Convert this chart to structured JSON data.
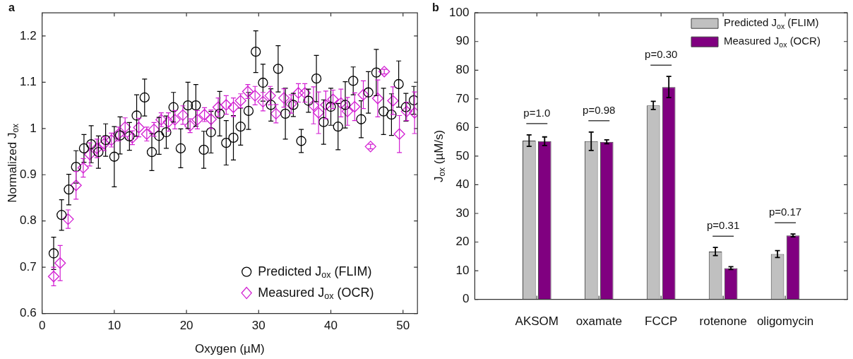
{
  "chart_data": [
    {
      "type": "scatter",
      "title": "a",
      "xlabel": "Oxygen (µM)",
      "ylabel": "Normalized J$_{ox}$",
      "xlim": [
        0,
        52
      ],
      "xticks": [
        0,
        10,
        20,
        30,
        40,
        50
      ],
      "ylim": [
        0.6,
        1.25
      ],
      "yticks": [
        0.6,
        0.7,
        0.8,
        0.9,
        1,
        1.1,
        1.2
      ],
      "legend": "bottom right",
      "series": [
        {
          "name": "Predicted J$_{ox}$ (FLIM)",
          "color": "#000000",
          "marker": "circle",
          "x": [
            1.6,
            2.7,
            3.7,
            4.7,
            5.8,
            6.8,
            7.8,
            8.8,
            10.0,
            10.8,
            12.1,
            13.1,
            14.2,
            15.2,
            16.2,
            17.2,
            18.2,
            19.2,
            20.2,
            21.3,
            22.4,
            23.4,
            24.6,
            25.5,
            26.5,
            27.5,
            28.6,
            29.6,
            30.6,
            31.7,
            32.7,
            33.7,
            34.8,
            35.9,
            36.9,
            38.0,
            39.0,
            40.0,
            41.0,
            42.0,
            43.1,
            44.2,
            45.2,
            46.3,
            47.3,
            48.4,
            49.4,
            50.4,
            51.5
          ],
          "values": [
            0.73,
            0.813,
            0.868,
            0.917,
            0.957,
            0.966,
            0.949,
            0.975,
            0.939,
            0.985,
            0.983,
            1.028,
            1.067,
            0.949,
            0.984,
            0.992,
            1.046,
            0.957,
            1.05,
            1.05,
            0.954,
            0.992,
            1.032,
            0.969,
            0.98,
            1.004,
            1.038,
            1.166,
            1.099,
            1.051,
            1.129,
            1.032,
            1.051,
            0.973,
            1.06,
            1.108,
            1.014,
            1.047,
            1.004,
            1.051,
            1.103,
            1.02,
            1.078,
            1.121,
            1.037,
            1.03,
            1.096,
            1.046,
            1.061
          ],
          "errors": [
            0.035,
            0.033,
            0.033,
            0.035,
            0.03,
            0.04,
            0.035,
            0.035,
            0.065,
            0.04,
            0.03,
            0.045,
            0.04,
            0.04,
            0.04,
            0.035,
            0.032,
            0.042,
            0.05,
            0.045,
            0.04,
            0.045,
            0.048,
            0.048,
            0.048,
            0.04,
            0.04,
            0.045,
            0.04,
            0.035,
            0.05,
            0.055,
            0.025,
            0.025,
            0.025,
            0.05,
            0.048,
            0.04,
            0.05,
            0.05,
            0.03,
            0.04,
            0.045,
            0.05,
            0.05,
            0.045,
            0.05,
            0.03,
            0.03
          ]
        },
        {
          "name": "Measured J$_{ox}$ (OCR)",
          "color": "#d21ed2",
          "marker": "diamond",
          "x": [
            1.6,
            2.5,
            3.6,
            4.7,
            5.7,
            6.6,
            7.6,
            8.6,
            9.6,
            10.6,
            11.5,
            12.5,
            13.4,
            14.5,
            15.5,
            16.5,
            17.5,
            18.4,
            19.5,
            20.5,
            21.5,
            22.5,
            23.4,
            24.4,
            25.5,
            26.5,
            27.5,
            28.5,
            29.5,
            30.6,
            31.6,
            32.4,
            33.5,
            34.5,
            35.5,
            36.4,
            37.6,
            38.3,
            39.3,
            40.3,
            41.4,
            42.3,
            43.3,
            44.5,
            45.5,
            46.5,
            47.4,
            48.6,
            49.5,
            50.5,
            51.6
          ],
          "values": [
            0.68,
            0.709,
            0.804,
            0.877,
            0.915,
            0.944,
            0.957,
            0.967,
            0.975,
            0.988,
            1.003,
            0.98,
            1.002,
            0.988,
            0.998,
            1.019,
            1.014,
            1.019,
            1.029,
            1.006,
            1.019,
            1.03,
            1.02,
            1.046,
            1.051,
            1.046,
            1.06,
            1.08,
            1.071,
            1.058,
            1.071,
            1.032,
            1.066,
            1.053,
            1.077,
            1.077,
            1.05,
            1.034,
            1.051,
            1.063,
            1.055,
            1.037,
            1.047,
            1.073,
            0.961,
            1.065,
            1.123,
            1.06,
            0.988,
            1.037,
            1.034
          ],
          "errors": [
            0.02,
            0.038,
            0.02,
            0.03,
            0.02,
            0.025,
            0.02,
            0.015,
            0.015,
            0.015,
            0.02,
            0.015,
            0.02,
            0.015,
            0.015,
            0.015,
            0.02,
            0.02,
            0.02,
            0.015,
            0.02,
            0.015,
            0.02,
            0.02,
            0.02,
            0.02,
            0.015,
            0.015,
            0.02,
            0.02,
            0.02,
            0.02,
            0.02,
            0.02,
            0.02,
            0.02,
            0.04,
            0.045,
            0.03,
            0.02,
            0.03,
            0.03,
            0.03,
            0.03,
            0.005,
            0.04,
            0.005,
            0.03,
            0.04,
            0.02,
            0.045
          ]
        }
      ]
    },
    {
      "type": "bar",
      "title": "b",
      "ylabel": "J$_{ox}$ (µM/s)",
      "categories": [
        "AKSOM",
        "oxamate",
        "FCCP",
        "rotenone",
        "oligomycin"
      ],
      "ylim": [
        0,
        100
      ],
      "yticks": [
        0,
        10,
        20,
        30,
        40,
        50,
        60,
        70,
        80,
        90,
        100
      ],
      "legend": "top right",
      "series": [
        {
          "name": "Predicted J$_{ox}$ (FLIM)",
          "color": "#c0c0c0",
          "values": [
            55.4,
            55.2,
            67.7,
            16.7,
            15.8
          ],
          "errors": [
            2.0,
            3.2,
            1.4,
            1.4,
            1.2
          ]
        },
        {
          "name": "Measured J$_{ox}$ (OCR)",
          "color": "#800080",
          "values": [
            55.2,
            55.0,
            74.1,
            10.9,
            22.3
          ],
          "errors": [
            1.5,
            0.7,
            3.7,
            0.5,
            0.5
          ]
        }
      ],
      "annotations": [
        "p=1.0",
        "p=0.98",
        "p=0.30",
        "p=0.31",
        "p=0.17"
      ]
    }
  ]
}
